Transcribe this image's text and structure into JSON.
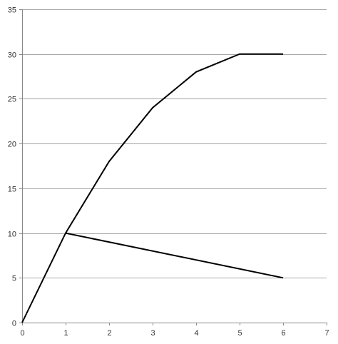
{
  "chart_data": {
    "type": "line",
    "title": "",
    "xlabel": "",
    "ylabel": "",
    "xlim": [
      0,
      7
    ],
    "ylim": [
      0,
      35
    ],
    "x_ticks": [
      0,
      1,
      2,
      3,
      4,
      5,
      6,
      7
    ],
    "y_ticks": [
      0,
      5,
      10,
      15,
      20,
      25,
      30,
      35
    ],
    "grid": {
      "horizontal": true,
      "vertical": false
    },
    "legend": "none",
    "series": [
      {
        "x": [
          0,
          1,
          2,
          3,
          4,
          5,
          6
        ],
        "y": [
          0,
          10,
          18,
          24,
          28,
          30,
          30
        ],
        "color": "#000000"
      },
      {
        "x": [
          1,
          6
        ],
        "y": [
          10,
          5
        ],
        "color": "#000000"
      }
    ]
  }
}
